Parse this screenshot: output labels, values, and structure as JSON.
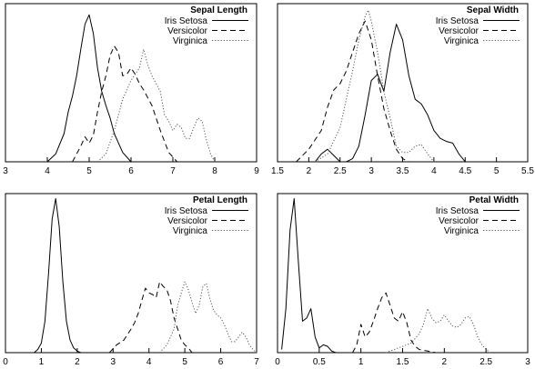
{
  "chart_data": [
    {
      "type": "line",
      "title": "Sepal Length",
      "xlim": [
        3,
        9
      ],
      "xticks": [
        "3",
        "4",
        "5",
        "6",
        "7",
        "8",
        "9"
      ],
      "xtick_values": [
        3,
        4,
        5,
        6,
        7,
        8,
        9
      ],
      "ylim": [
        0,
        1.0
      ],
      "legend": "top-right",
      "series": [
        {
          "name": "Iris Setosa",
          "style": "solid",
          "x": [
            4.0,
            4.2,
            4.4,
            4.5,
            4.6,
            4.7,
            4.8,
            4.9,
            5.0,
            5.1,
            5.2,
            5.3,
            5.4,
            5.5,
            5.6,
            5.8,
            6.0
          ],
          "y": [
            0.0,
            0.05,
            0.18,
            0.32,
            0.42,
            0.55,
            0.72,
            0.88,
            0.94,
            0.82,
            0.6,
            0.45,
            0.36,
            0.28,
            0.18,
            0.06,
            0.0
          ]
        },
        {
          "name": "Versicolor",
          "style": "dashed",
          "x": [
            4.6,
            4.8,
            4.9,
            5.0,
            5.1,
            5.2,
            5.3,
            5.4,
            5.5,
            5.6,
            5.7,
            5.8,
            5.9,
            6.0,
            6.1,
            6.2,
            6.3,
            6.5,
            6.7,
            6.9,
            7.1
          ],
          "y": [
            0.0,
            0.1,
            0.16,
            0.12,
            0.17,
            0.32,
            0.45,
            0.55,
            0.68,
            0.74,
            0.7,
            0.55,
            0.56,
            0.6,
            0.56,
            0.5,
            0.46,
            0.36,
            0.2,
            0.06,
            0.0
          ]
        },
        {
          "name": "Virginica",
          "style": "dotted",
          "x": [
            5.2,
            5.4,
            5.6,
            5.8,
            6.0,
            6.2,
            6.3,
            6.4,
            6.5,
            6.6,
            6.7,
            6.8,
            6.9,
            7.0,
            7.1,
            7.2,
            7.3,
            7.4,
            7.5,
            7.6,
            7.7,
            7.8,
            7.9,
            8.0
          ],
          "y": [
            0.0,
            0.05,
            0.2,
            0.4,
            0.52,
            0.6,
            0.72,
            0.62,
            0.55,
            0.5,
            0.45,
            0.3,
            0.26,
            0.2,
            0.24,
            0.22,
            0.15,
            0.15,
            0.22,
            0.28,
            0.26,
            0.14,
            0.05,
            0.0
          ]
        }
      ]
    },
    {
      "type": "line",
      "title": "Sepal Width",
      "xlim": [
        1.5,
        5.5
      ],
      "xticks": [
        "1.5",
        "2",
        "2.5",
        "3",
        "3.5",
        "4",
        "4.5",
        "5",
        "5.5"
      ],
      "xtick_values": [
        1.5,
        2,
        2.5,
        3,
        3.5,
        4,
        4.5,
        5,
        5.5
      ],
      "ylim": [
        0,
        1.0
      ],
      "legend": "top-right",
      "series": [
        {
          "name": "Iris Setosa",
          "style": "solid",
          "x": [
            2.1,
            2.2,
            2.3,
            2.4,
            2.5,
            2.6,
            2.7,
            2.8,
            2.9,
            3.0,
            3.1,
            3.2,
            3.3,
            3.4,
            3.5,
            3.6,
            3.7,
            3.8,
            3.9,
            4.0,
            4.1,
            4.2,
            4.3,
            4.4,
            4.5
          ],
          "y": [
            0.0,
            0.05,
            0.08,
            0.04,
            0.0,
            0.0,
            0.02,
            0.1,
            0.3,
            0.52,
            0.56,
            0.45,
            0.7,
            0.88,
            0.78,
            0.55,
            0.4,
            0.37,
            0.3,
            0.2,
            0.15,
            0.13,
            0.12,
            0.05,
            0.0
          ]
        },
        {
          "name": "Versicolor",
          "style": "dashed",
          "x": [
            1.8,
            2.0,
            2.2,
            2.3,
            2.4,
            2.5,
            2.6,
            2.7,
            2.8,
            2.9,
            3.0,
            3.1,
            3.2,
            3.3,
            3.4,
            3.5,
            3.6
          ],
          "y": [
            0.0,
            0.08,
            0.2,
            0.35,
            0.46,
            0.5,
            0.58,
            0.7,
            0.82,
            0.9,
            0.78,
            0.55,
            0.34,
            0.2,
            0.08,
            0.02,
            0.0
          ]
        },
        {
          "name": "Virginica",
          "style": "dotted",
          "x": [
            2.1,
            2.3,
            2.5,
            2.6,
            2.7,
            2.8,
            2.9,
            2.95,
            3.0,
            3.1,
            3.2,
            3.3,
            3.4,
            3.5,
            3.6,
            3.7,
            3.8,
            3.9,
            4.0
          ],
          "y": [
            0.0,
            0.05,
            0.22,
            0.4,
            0.58,
            0.78,
            0.93,
            0.97,
            0.9,
            0.7,
            0.45,
            0.28,
            0.1,
            0.06,
            0.06,
            0.1,
            0.11,
            0.05,
            0.0
          ]
        }
      ]
    },
    {
      "type": "line",
      "title": "Petal Length",
      "xlim": [
        0,
        7
      ],
      "xticks": [
        "0",
        "1",
        "2",
        "3",
        "4",
        "5",
        "6",
        "7"
      ],
      "xtick_values": [
        0,
        1,
        2,
        3,
        4,
        5,
        6,
        7
      ],
      "ylim": [
        0,
        1.0
      ],
      "legend": "top-right",
      "series": [
        {
          "name": "Iris Setosa",
          "style": "solid",
          "x": [
            0.8,
            0.9,
            1.0,
            1.1,
            1.2,
            1.3,
            1.4,
            1.5,
            1.6,
            1.7,
            1.8,
            1.9,
            2.0,
            2.1
          ],
          "y": [
            0.0,
            0.02,
            0.06,
            0.2,
            0.5,
            0.85,
            0.98,
            0.8,
            0.45,
            0.2,
            0.08,
            0.03,
            0.01,
            0.0
          ]
        },
        {
          "name": "Versicolor",
          "style": "dashed",
          "x": [
            2.9,
            3.1,
            3.3,
            3.5,
            3.6,
            3.7,
            3.8,
            3.9,
            4.0,
            4.1,
            4.2,
            4.3,
            4.4,
            4.5,
            4.6,
            4.7,
            4.8,
            4.9,
            5.0,
            5.1,
            5.2
          ],
          "y": [
            0.0,
            0.05,
            0.08,
            0.15,
            0.19,
            0.25,
            0.33,
            0.41,
            0.38,
            0.37,
            0.35,
            0.45,
            0.42,
            0.4,
            0.33,
            0.22,
            0.15,
            0.08,
            0.05,
            0.03,
            0.0
          ]
        },
        {
          "name": "Virginica",
          "style": "dotted",
          "x": [
            4.3,
            4.5,
            4.7,
            4.8,
            4.9,
            5.0,
            5.1,
            5.2,
            5.3,
            5.4,
            5.5,
            5.6,
            5.7,
            5.8,
            5.9,
            6.0,
            6.1,
            6.2,
            6.3,
            6.4,
            6.5,
            6.6,
            6.7,
            6.8,
            6.9,
            7.0
          ],
          "y": [
            0.0,
            0.05,
            0.15,
            0.3,
            0.38,
            0.45,
            0.4,
            0.32,
            0.25,
            0.3,
            0.42,
            0.44,
            0.34,
            0.27,
            0.24,
            0.22,
            0.18,
            0.12,
            0.07,
            0.07,
            0.1,
            0.13,
            0.1,
            0.05,
            0.02,
            0.0
          ]
        }
      ]
    },
    {
      "type": "line",
      "title": "Petal Width",
      "xlim": [
        0,
        3
      ],
      "xticks": [
        "0",
        "0.5",
        "1",
        "1.5",
        "2",
        "2.5",
        "3"
      ],
      "xtick_values": [
        0,
        0.5,
        1,
        1.5,
        2,
        2.5,
        3
      ],
      "ylim": [
        0,
        1.0
      ],
      "legend": "top-right",
      "series": [
        {
          "name": "Iris Setosa",
          "style": "solid",
          "x": [
            0.05,
            0.1,
            0.15,
            0.2,
            0.25,
            0.3,
            0.35,
            0.4,
            0.45,
            0.5,
            0.55,
            0.6,
            0.65,
            0.7
          ],
          "y": [
            0.02,
            0.28,
            0.78,
            0.98,
            0.58,
            0.2,
            0.22,
            0.28,
            0.1,
            0.03,
            0.05,
            0.04,
            0.01,
            0.0
          ]
        },
        {
          "name": "Versicolor",
          "style": "dashed",
          "x": [
            0.9,
            0.95,
            1.0,
            1.05,
            1.1,
            1.15,
            1.2,
            1.25,
            1.3,
            1.35,
            1.4,
            1.45,
            1.5,
            1.55,
            1.6,
            1.65,
            1.7,
            1.8,
            1.9
          ],
          "y": [
            0.0,
            0.05,
            0.18,
            0.1,
            0.13,
            0.2,
            0.28,
            0.35,
            0.38,
            0.3,
            0.22,
            0.2,
            0.26,
            0.19,
            0.08,
            0.04,
            0.02,
            0.01,
            0.0
          ]
        },
        {
          "name": "Virginica",
          "style": "dotted",
          "x": [
            1.3,
            1.4,
            1.5,
            1.6,
            1.7,
            1.75,
            1.8,
            1.85,
            1.9,
            1.95,
            2.0,
            2.05,
            2.1,
            2.15,
            2.2,
            2.25,
            2.3,
            2.35,
            2.4,
            2.45,
            2.5,
            2.55
          ],
          "y": [
            0.0,
            0.02,
            0.04,
            0.06,
            0.12,
            0.18,
            0.28,
            0.22,
            0.19,
            0.2,
            0.24,
            0.2,
            0.17,
            0.16,
            0.18,
            0.22,
            0.23,
            0.18,
            0.1,
            0.05,
            0.02,
            0.0
          ]
        }
      ]
    }
  ]
}
